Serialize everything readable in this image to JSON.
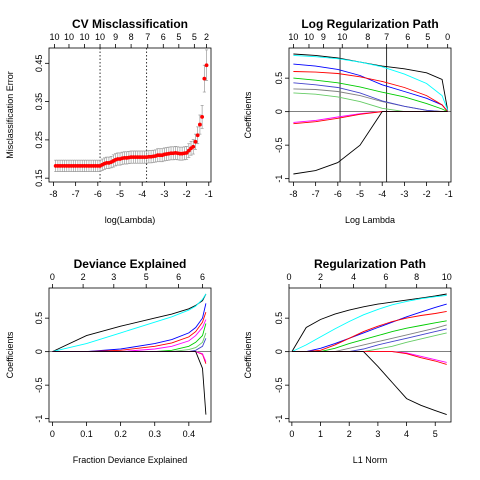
{
  "chart_data": [
    {
      "type": "scatter",
      "title": "CV Misclassification",
      "xlabel": "log(Lambda)",
      "ylabel": "Misclassification Error",
      "xlim": [
        -8.2,
        -0.9
      ],
      "ylim": [
        0.14,
        0.49
      ],
      "x_ticks": [
        -8,
        -7,
        -6,
        -5,
        -4,
        -3,
        -2,
        -1
      ],
      "y_ticks": [
        0.15,
        0.25,
        0.35,
        0.45
      ],
      "top_axis": {
        "positions": [
          -7.95,
          -7.3,
          -6.6,
          -5.9,
          -5.2,
          -4.5,
          -3.75,
          -3.05,
          -2.35,
          -1.65,
          -1.1
        ],
        "labels": [
          "10",
          "10",
          "10",
          "10",
          "9",
          "8",
          "7",
          "6",
          "5",
          "5",
          "2"
        ]
      },
      "vlines": [
        -5.9,
        -3.8
      ],
      "x": [
        -7.9,
        -7.8,
        -7.7,
        -7.6,
        -7.5,
        -7.4,
        -7.3,
        -7.2,
        -7.1,
        -7.0,
        -6.9,
        -6.8,
        -6.7,
        -6.6,
        -6.5,
        -6.4,
        -6.3,
        -6.2,
        -6.1,
        -6.0,
        -5.9,
        -5.8,
        -5.7,
        -5.6,
        -5.5,
        -5.4,
        -5.3,
        -5.2,
        -5.1,
        -5.0,
        -4.9,
        -4.8,
        -4.7,
        -4.6,
        -4.5,
        -4.4,
        -4.3,
        -4.2,
        -4.1,
        -4.0,
        -3.9,
        -3.8,
        -3.7,
        -3.6,
        -3.5,
        -3.4,
        -3.3,
        -3.2,
        -3.1,
        -3.0,
        -2.9,
        -2.8,
        -2.7,
        -2.6,
        -2.5,
        -2.4,
        -2.3,
        -2.2,
        -2.1,
        -2.0,
        -1.9,
        -1.8,
        -1.7,
        -1.6,
        -1.5,
        -1.4,
        -1.3,
        -1.2,
        -1.1
      ],
      "y": [
        0.182,
        0.182,
        0.182,
        0.182,
        0.182,
        0.182,
        0.182,
        0.182,
        0.182,
        0.182,
        0.182,
        0.182,
        0.182,
        0.182,
        0.182,
        0.182,
        0.182,
        0.182,
        0.182,
        0.182,
        0.182,
        0.185,
        0.188,
        0.19,
        0.19,
        0.192,
        0.195,
        0.198,
        0.2,
        0.2,
        0.202,
        0.203,
        0.203,
        0.204,
        0.205,
        0.205,
        0.205,
        0.205,
        0.205,
        0.205,
        0.205,
        0.205,
        0.206,
        0.206,
        0.207,
        0.208,
        0.21,
        0.21,
        0.21,
        0.212,
        0.213,
        0.214,
        0.215,
        0.215,
        0.216,
        0.215,
        0.214,
        0.214,
        0.215,
        0.216,
        0.222,
        0.228,
        0.232,
        0.245,
        0.262,
        0.29,
        0.31,
        0.41,
        0.445
      ],
      "error": [
        0.015,
        0.015,
        0.015,
        0.015,
        0.015,
        0.015,
        0.015,
        0.015,
        0.015,
        0.015,
        0.015,
        0.015,
        0.015,
        0.015,
        0.015,
        0.015,
        0.015,
        0.015,
        0.015,
        0.015,
        0.015,
        0.015,
        0.015,
        0.015,
        0.015,
        0.015,
        0.016,
        0.016,
        0.016,
        0.016,
        0.016,
        0.016,
        0.016,
        0.016,
        0.016,
        0.016,
        0.016,
        0.016,
        0.016,
        0.016,
        0.016,
        0.016,
        0.016,
        0.016,
        0.016,
        0.016,
        0.017,
        0.017,
        0.017,
        0.017,
        0.017,
        0.017,
        0.017,
        0.017,
        0.017,
        0.017,
        0.017,
        0.017,
        0.017,
        0.017,
        0.018,
        0.018,
        0.019,
        0.02,
        0.022,
        0.025,
        0.03,
        0.035,
        0.04
      ],
      "point_color": "#ff0000",
      "error_color": "#999999"
    },
    {
      "type": "line",
      "title": "Log Regularization Path",
      "xlabel": "Log Lambda",
      "ylabel": "Coefficients",
      "xlim": [
        -8.2,
        -0.9
      ],
      "ylim": [
        -1.05,
        0.95
      ],
      "x_ticks": [
        -8,
        -7,
        -6,
        -5,
        -4,
        -3,
        -2,
        -1
      ],
      "y_ticks": [
        -1.0,
        -0.5,
        0.0,
        0.5
      ],
      "top_axis": {
        "positions": [
          -8,
          -7.3,
          -6.65,
          -5.8,
          -4.65,
          -3.8,
          -2.85,
          -1.95,
          -1.05
        ],
        "labels": [
          "10",
          "10",
          "9",
          "10",
          "8",
          "7",
          "6",
          "5",
          "0"
        ]
      },
      "vlines": [
        -5.9,
        -3.8
      ],
      "x": [
        -8,
        -7,
        -6,
        -5,
        -4,
        -3,
        -2,
        -1.3,
        -1.05
      ],
      "series": [
        {
          "color": "#000000",
          "values": [
            0.86,
            0.84,
            0.8,
            0.74,
            0.68,
            0.64,
            0.58,
            0.48,
            0.02
          ]
        },
        {
          "color": "#00ffff",
          "values": [
            0.84,
            0.82,
            0.79,
            0.74,
            0.67,
            0.56,
            0.42,
            0.24,
            0.02
          ]
        },
        {
          "color": "#0000ff",
          "values": [
            0.71,
            0.68,
            0.63,
            0.54,
            0.4,
            0.3,
            0.2,
            0.1,
            0.0
          ]
        },
        {
          "color": "#ff0000",
          "values": [
            0.6,
            0.59,
            0.57,
            0.52,
            0.45,
            0.36,
            0.24,
            0.1,
            0.0
          ]
        },
        {
          "color": "#00cc00",
          "values": [
            0.5,
            0.47,
            0.43,
            0.37,
            0.29,
            0.22,
            0.12,
            0.04,
            0.0
          ]
        },
        {
          "color": "#808080",
          "values": [
            0.34,
            0.33,
            0.3,
            0.24,
            0.15,
            0.08,
            0.02,
            0.0,
            0.0
          ]
        },
        {
          "color": "#4444cc",
          "values": [
            0.43,
            0.4,
            0.36,
            0.28,
            0.16,
            0.08,
            0.02,
            0.0,
            0.0
          ]
        },
        {
          "color": "#66cc66",
          "values": [
            0.28,
            0.26,
            0.22,
            0.15,
            0.05,
            0.0,
            0.0,
            0.0,
            0.0
          ]
        },
        {
          "color": "#ff00ff",
          "values": [
            -0.16,
            -0.13,
            -0.08,
            -0.03,
            0.0,
            0.0,
            0.0,
            0.0,
            0.0
          ]
        },
        {
          "color": "#ff0000",
          "values": [
            -0.18,
            -0.15,
            -0.1,
            -0.04,
            0.0,
            0.0,
            0.0,
            0.0,
            0.0
          ]
        },
        {
          "color": "#000000",
          "values": [
            -0.93,
            -0.88,
            -0.76,
            -0.5,
            0.0,
            0.0,
            0.0,
            0.0,
            0.0
          ]
        }
      ]
    },
    {
      "type": "line",
      "title": "Deviance Explained",
      "xlabel": "Fraction Deviance Explained",
      "ylabel": "Coefficients",
      "xlim": [
        -0.01,
        0.465
      ],
      "ylim": [
        -1.05,
        0.95
      ],
      "x_ticks": [
        0.0,
        0.1,
        0.2,
        0.3,
        0.4
      ],
      "y_ticks": [
        -1.0,
        -0.5,
        0.0,
        0.5
      ],
      "top_axis": {
        "positions": [
          0.0,
          0.09,
          0.18,
          0.275,
          0.37,
          0.44
        ],
        "labels": [
          "0",
          "2",
          "3",
          "5",
          "6",
          "6"
        ]
      },
      "vlines": [],
      "x": [
        0.0,
        0.1,
        0.2,
        0.3,
        0.35,
        0.4,
        0.42,
        0.44,
        0.45
      ],
      "series": [
        {
          "color": "#000000",
          "values": [
            0.0,
            0.24,
            0.38,
            0.5,
            0.56,
            0.64,
            0.69,
            0.76,
            0.86
          ]
        },
        {
          "color": "#00ffff",
          "values": [
            0.0,
            0.12,
            0.28,
            0.44,
            0.52,
            0.62,
            0.68,
            0.78,
            0.86
          ]
        },
        {
          "color": "#0000ff",
          "values": [
            0.0,
            0.0,
            0.04,
            0.12,
            0.18,
            0.28,
            0.36,
            0.5,
            0.72
          ]
        },
        {
          "color": "#ff0000",
          "values": [
            0.0,
            0.0,
            0.02,
            0.08,
            0.13,
            0.22,
            0.3,
            0.44,
            0.59
          ]
        },
        {
          "color": "#ff00ff",
          "values": [
            0.0,
            0.0,
            0.0,
            0.04,
            0.08,
            0.16,
            0.24,
            0.36,
            0.48
          ]
        },
        {
          "color": "#00cc00",
          "values": [
            0.0,
            0.0,
            0.0,
            0.0,
            0.02,
            0.08,
            0.14,
            0.24,
            0.42
          ]
        },
        {
          "color": "#66cc66",
          "values": [
            0.0,
            0.0,
            0.0,
            0.0,
            0.0,
            0.03,
            0.06,
            0.14,
            0.28
          ]
        },
        {
          "color": "#4444cc",
          "values": [
            0.0,
            0.0,
            0.0,
            0.0,
            0.0,
            0.0,
            0.02,
            0.08,
            0.2
          ]
        },
        {
          "color": "#ff0000",
          "values": [
            0.0,
            0.0,
            0.0,
            0.0,
            0.0,
            0.0,
            0.0,
            -0.04,
            -0.18
          ]
        },
        {
          "color": "#ff00ff",
          "values": [
            0.0,
            0.0,
            0.0,
            0.0,
            0.0,
            0.0,
            0.0,
            -0.03,
            -0.15
          ]
        },
        {
          "color": "#000000",
          "values": [
            0.0,
            0.0,
            0.0,
            0.0,
            0.0,
            0.0,
            0.0,
            -0.25,
            -0.94
          ]
        }
      ]
    },
    {
      "type": "line",
      "title": "Regularization Path",
      "xlabel": "L1 Norm",
      "ylabel": "Coefficients",
      "xlim": [
        -0.1,
        5.55
      ],
      "ylim": [
        -1.05,
        0.95
      ],
      "x_ticks": [
        0,
        1,
        2,
        3,
        4,
        5
      ],
      "y_ticks": [
        -1.0,
        -0.5,
        0.0,
        0.5
      ],
      "top_axis": {
        "positions": [
          0,
          2.1,
          4.3,
          6.45,
          8.5,
          10.5
        ],
        "labels": [
          "0",
          "2",
          "4",
          "6",
          "8",
          "10"
        ]
      },
      "top_axis_note": "top axis positions are in degrees-of-freedom units mapped linearly over 0..10.5",
      "vlines": [],
      "x": [
        0,
        0.5,
        1,
        1.5,
        2,
        2.5,
        3,
        3.5,
        4,
        4.5,
        5,
        5.4
      ],
      "series": [
        {
          "color": "#000000",
          "values": [
            0.0,
            0.36,
            0.48,
            0.56,
            0.62,
            0.67,
            0.71,
            0.74,
            0.77,
            0.8,
            0.83,
            0.86
          ]
        },
        {
          "color": "#00ffff",
          "values": [
            0.0,
            0.1,
            0.22,
            0.34,
            0.45,
            0.55,
            0.63,
            0.7,
            0.75,
            0.79,
            0.82,
            0.84
          ]
        },
        {
          "color": "#0000ff",
          "values": [
            0.0,
            0.0,
            0.05,
            0.12,
            0.2,
            0.28,
            0.36,
            0.44,
            0.52,
            0.59,
            0.66,
            0.71
          ]
        },
        {
          "color": "#ff0000",
          "values": [
            0.0,
            0.0,
            0.02,
            0.1,
            0.2,
            0.3,
            0.38,
            0.45,
            0.5,
            0.54,
            0.57,
            0.6
          ]
        },
        {
          "color": "#00cc00",
          "values": [
            0.0,
            0.0,
            0.0,
            0.05,
            0.12,
            0.18,
            0.24,
            0.3,
            0.35,
            0.39,
            0.43,
            0.46
          ]
        },
        {
          "color": "#808080",
          "values": [
            0.0,
            0.0,
            0.0,
            0.0,
            0.05,
            0.1,
            0.15,
            0.2,
            0.25,
            0.3,
            0.35,
            0.4
          ]
        },
        {
          "color": "#4444cc",
          "values": [
            0.0,
            0.0,
            0.0,
            0.0,
            0.0,
            0.04,
            0.1,
            0.15,
            0.2,
            0.25,
            0.3,
            0.34
          ]
        },
        {
          "color": "#66cc66",
          "values": [
            0.0,
            0.0,
            0.0,
            0.0,
            0.0,
            0.0,
            0.04,
            0.08,
            0.14,
            0.19,
            0.24,
            0.28
          ]
        },
        {
          "color": "#ff00ff",
          "values": [
            0.0,
            0.0,
            0.0,
            0.0,
            0.0,
            0.0,
            0.0,
            0.0,
            -0.02,
            -0.07,
            -0.12,
            -0.16
          ]
        },
        {
          "color": "#ff0000",
          "values": [
            0.0,
            0.0,
            0.0,
            0.0,
            0.0,
            0.0,
            0.0,
            0.0,
            -0.03,
            -0.09,
            -0.14,
            -0.19
          ]
        },
        {
          "color": "#000000",
          "values": [
            0.0,
            0.0,
            0.0,
            0.0,
            0.0,
            0.0,
            -0.22,
            -0.46,
            -0.7,
            -0.8,
            -0.88,
            -0.94
          ]
        }
      ]
    }
  ]
}
